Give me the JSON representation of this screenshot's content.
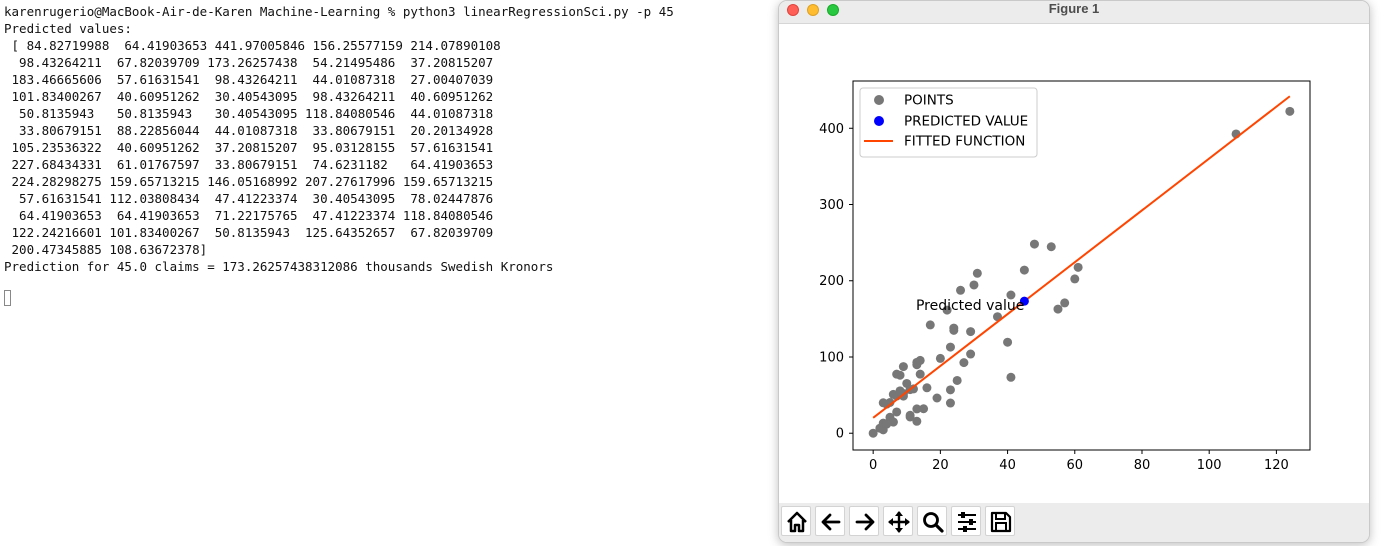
{
  "terminal": {
    "lines": [
      "karenrugerio@MacBook-Air-de-Karen Machine-Learning % python3 linearRegressionSci.py -p 45",
      "Predicted values:",
      " [ 84.82719988  64.41903653 441.97005846 156.25577159 214.07890108",
      "  98.43264211  67.82039709 173.26257438  54.21495486  37.20815207",
      " 183.46665606  57.61631541  98.43264211  44.01087318  27.00407039",
      " 101.83400267  40.60951262  30.40543095  98.43264211  40.60951262",
      "  50.8135943   50.8135943   30.40543095 118.84080546  44.01087318",
      "  33.80679151  88.22856044  44.01087318  33.80679151  20.20134928",
      " 105.23536322  40.60951262  37.20815207  95.03128155  57.61631541",
      " 227.68434331  61.01767597  33.80679151  74.6231182   64.41903653",
      " 224.28298275 159.65713215 146.05168992 207.27617996 159.65713215",
      "  57.61631541 112.03808434  47.41223374  30.40543095  78.02447876",
      "  64.41903653  64.41903653  71.22175765  47.41223374 118.84080546",
      " 122.24216601 101.83400267  50.8135943  125.64352657  67.82039709",
      " 200.47345885 108.63672378]",
      "Prediction for 45.0 claims = 173.26257438312086 thousands Swedish Kronors"
    ]
  },
  "figure_window": {
    "title": "Figure 1",
    "toolbar": [
      {
        "name": "home-icon"
      },
      {
        "name": "back-arrow-icon"
      },
      {
        "name": "forward-arrow-icon"
      },
      {
        "name": "pan-move-icon"
      },
      {
        "name": "zoom-magnifier-icon"
      },
      {
        "name": "configure-subplots-icon"
      },
      {
        "name": "save-floppy-icon"
      }
    ]
  },
  "chart_data": {
    "type": "scatter",
    "title": "",
    "xlabel": "",
    "ylabel": "",
    "xlim": [
      -6,
      130
    ],
    "ylim": [
      -22,
      462
    ],
    "xticks": [
      0,
      20,
      40,
      60,
      80,
      100,
      120
    ],
    "yticks": [
      0,
      100,
      200,
      300,
      400
    ],
    "grid": false,
    "legend_position": "upper-left",
    "legend": [
      "POINTS",
      "PREDICTED VALUE",
      "FITTED FUNCTION"
    ],
    "colors": {
      "points": "#777777",
      "predicted": "#0000ff",
      "fit": "#ff4500"
    },
    "annotation": {
      "text": "Predicted value",
      "x": 45,
      "y": 173.26
    },
    "series": [
      {
        "name": "POINTS",
        "type": "scatter",
        "points": [
          [
            108,
            392.5
          ],
          [
            19,
            46.2
          ],
          [
            13,
            15.7
          ],
          [
            124,
            422.2
          ],
          [
            40,
            119.4
          ],
          [
            57,
            170.9
          ],
          [
            23,
            56.9
          ],
          [
            14,
            77.5
          ],
          [
            45,
            214.0
          ],
          [
            10,
            65.3
          ],
          [
            5,
            20.9
          ],
          [
            48,
            248.1
          ],
          [
            11,
            23.5
          ],
          [
            23,
            39.6
          ],
          [
            7,
            48.8
          ],
          [
            2,
            6.6
          ],
          [
            24,
            134.9
          ],
          [
            6,
            50.9
          ],
          [
            3,
            4.4
          ],
          [
            23,
            113.0
          ],
          [
            6,
            14.8
          ],
          [
            9,
            48.7
          ],
          [
            9,
            52.1
          ],
          [
            3,
            13.2
          ],
          [
            29,
            103.9
          ],
          [
            7,
            77.5
          ],
          [
            4,
            11.8
          ],
          [
            20,
            98.1
          ],
          [
            7,
            27.9
          ],
          [
            4,
            38.1
          ],
          [
            0,
            0.0
          ],
          [
            25,
            69.2
          ],
          [
            6,
            14.6
          ],
          [
            5,
            40.3
          ],
          [
            22,
            161.5
          ],
          [
            11,
            57.2
          ],
          [
            61,
            217.6
          ],
          [
            12,
            58.1
          ],
          [
            4,
            12.6
          ],
          [
            16,
            59.6
          ],
          [
            13,
            89.9
          ],
          [
            60,
            202.4
          ],
          [
            41,
            181.3
          ],
          [
            37,
            152.8
          ],
          [
            55,
            162.8
          ],
          [
            41,
            73.4
          ],
          [
            11,
            21.3
          ],
          [
            27,
            92.6
          ],
          [
            8,
            76.1
          ],
          [
            3,
            39.9
          ],
          [
            17,
            142.1
          ],
          [
            13,
            93.0
          ],
          [
            13,
            31.9
          ],
          [
            15,
            32.1
          ],
          [
            8,
            55.6
          ],
          [
            29,
            133.3
          ],
          [
            30,
            194.5
          ],
          [
            24,
            137.9
          ],
          [
            9,
            87.4
          ],
          [
            31,
            209.8
          ],
          [
            14,
            95.5
          ],
          [
            53,
            244.6
          ],
          [
            26,
            187.5
          ]
        ]
      },
      {
        "name": "PREDICTED VALUE",
        "type": "scatter",
        "points": [
          [
            45,
            173.26
          ]
        ]
      },
      {
        "name": "FITTED FUNCTION",
        "type": "line",
        "points": [
          [
            0,
            20.2
          ],
          [
            124,
            441.97
          ]
        ]
      }
    ]
  }
}
